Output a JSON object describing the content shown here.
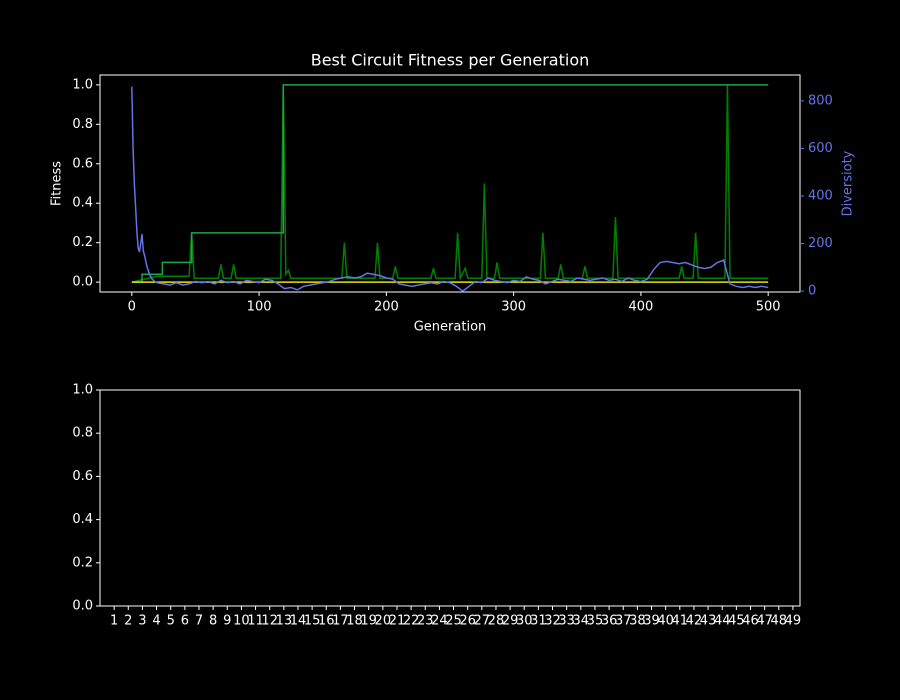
{
  "chart_data": [
    {
      "type": "line",
      "title": "Best Circuit Fitness per Generation",
      "x_label": "Generation",
      "y_label": "Fitness",
      "y2_label": "Diversioty",
      "xlim": [
        -25,
        525
      ],
      "xticks": [
        0,
        100,
        200,
        300,
        400,
        500
      ],
      "ylim": [
        -0.05,
        1.05
      ],
      "yticks": [
        {
          "value": 0,
          "label": "0.0"
        },
        {
          "value": 0.2,
          "label": "0.2"
        },
        {
          "value": 0.4,
          "label": "0.4"
        },
        {
          "value": 0.6,
          "label": "0.6"
        },
        {
          "value": 0.8,
          "label": "0.8"
        },
        {
          "value": 1,
          "label": "1.0"
        }
      ],
      "y2lim": [
        -4,
        909
      ],
      "y2ticks": [
        0,
        200,
        400,
        600,
        800
      ],
      "series": [
        {
          "color": "#008000",
          "x": [
            0,
            20,
            45,
            47,
            49,
            68,
            70,
            72,
            78,
            80,
            82,
            117,
            119,
            121,
            123,
            125,
            165,
            167,
            169,
            191,
            193,
            195,
            205,
            207,
            209,
            235,
            237,
            239,
            254,
            256,
            258,
            262,
            264,
            275,
            277,
            279,
            285,
            287,
            289,
            321,
            323,
            325,
            335,
            337,
            339,
            354,
            356,
            358,
            378,
            380,
            382,
            430,
            432,
            434,
            441,
            443,
            445,
            466,
            468,
            470,
            500
          ],
          "values": [
            0,
            0.03,
            0.03,
            0.25,
            0.02,
            0.02,
            0.09,
            0.02,
            0.02,
            0.09,
            0.02,
            0.02,
            1,
            0.04,
            0.06,
            0.02,
            0.02,
            0.2,
            0.02,
            0.02,
            0.2,
            0.02,
            0.02,
            0.08,
            0.02,
            0.02,
            0.07,
            0.02,
            0.02,
            0.25,
            0.02,
            0.07,
            0.02,
            0.02,
            0.5,
            0.02,
            0.02,
            0.1,
            0.02,
            0.02,
            0.25,
            0.02,
            0.02,
            0.09,
            0.02,
            0.02,
            0.08,
            0.02,
            0.02,
            0.33,
            0.02,
            0.02,
            0.08,
            0.02,
            0.02,
            0.25,
            0.02,
            0.02,
            1,
            0.02,
            0.02
          ]
        },
        {
          "color": "#1aa64a",
          "x": [
            0,
            8,
            8,
            24,
            24,
            47,
            47,
            119,
            119,
            500
          ],
          "values": [
            0,
            0,
            0.04,
            0.04,
            0.1,
            0.1,
            0.25,
            0.25,
            1,
            1
          ]
        },
        {
          "color": "#e6e600",
          "x": [
            0,
            500
          ],
          "values": [
            0,
            0
          ]
        },
        {
          "color": "#6474e5",
          "axis": "y2",
          "x": [
            0,
            1,
            2,
            3,
            4,
            5,
            6,
            7,
            8,
            9,
            10,
            12,
            14,
            16,
            18,
            20,
            25,
            30,
            35,
            40,
            45,
            50,
            55,
            60,
            65,
            70,
            75,
            80,
            85,
            90,
            95,
            100,
            105,
            110,
            115,
            120,
            125,
            130,
            135,
            140,
            145,
            150,
            155,
            160,
            165,
            170,
            175,
            180,
            185,
            190,
            195,
            200,
            205,
            210,
            215,
            220,
            225,
            230,
            235,
            240,
            245,
            250,
            255,
            260,
            265,
            270,
            275,
            280,
            285,
            290,
            295,
            300,
            305,
            310,
            315,
            320,
            325,
            330,
            335,
            340,
            345,
            350,
            355,
            360,
            365,
            370,
            375,
            380,
            385,
            390,
            395,
            400,
            405,
            410,
            415,
            420,
            425,
            430,
            435,
            440,
            445,
            450,
            455,
            460,
            465,
            470,
            475,
            480,
            485,
            490,
            495,
            500
          ],
          "values": [
            860,
            600,
            450,
            350,
            250,
            180,
            165,
            200,
            240,
            170,
            150,
            100,
            70,
            50,
            40,
            35,
            30,
            25,
            35,
            25,
            30,
            40,
            35,
            40,
            30,
            45,
            35,
            40,
            30,
            45,
            40,
            35,
            50,
            45,
            30,
            10,
            15,
            5,
            20,
            25,
            30,
            35,
            40,
            50,
            55,
            60,
            55,
            60,
            75,
            70,
            65,
            55,
            50,
            30,
            25,
            20,
            25,
            30,
            35,
            30,
            40,
            35,
            20,
            0,
            20,
            40,
            35,
            55,
            45,
            40,
            35,
            45,
            40,
            60,
            50,
            45,
            30,
            40,
            50,
            45,
            40,
            55,
            50,
            45,
            50,
            55,
            45,
            50,
            40,
            55,
            45,
            40,
            50,
            90,
            120,
            125,
            120,
            115,
            120,
            110,
            100,
            95,
            100,
            120,
            130,
            30,
            20,
            15,
            20,
            15,
            20,
            15
          ]
        }
      ]
    },
    {
      "type": "bar",
      "xlim": [
        0,
        49.5
      ],
      "xticks": [
        1,
        2,
        3,
        4,
        5,
        6,
        7,
        8,
        9,
        10,
        11,
        12,
        13,
        14,
        15,
        16,
        17,
        18,
        19,
        20,
        21,
        22,
        23,
        24,
        25,
        26,
        27,
        28,
        29,
        30,
        31,
        32,
        33,
        34,
        35,
        36,
        37,
        38,
        39,
        40,
        41,
        42,
        43,
        44,
        45,
        46,
        47,
        48,
        49
      ],
      "ylim": [
        0,
        1
      ],
      "yticks": [
        {
          "value": 0,
          "label": "0.0"
        },
        {
          "value": 0.2,
          "label": "0.2"
        },
        {
          "value": 0.4,
          "label": "0.4"
        },
        {
          "value": 0.6,
          "label": "0.6"
        },
        {
          "value": 0.8,
          "label": "0.8"
        },
        {
          "value": 1,
          "label": "1.0"
        }
      ]
    }
  ]
}
